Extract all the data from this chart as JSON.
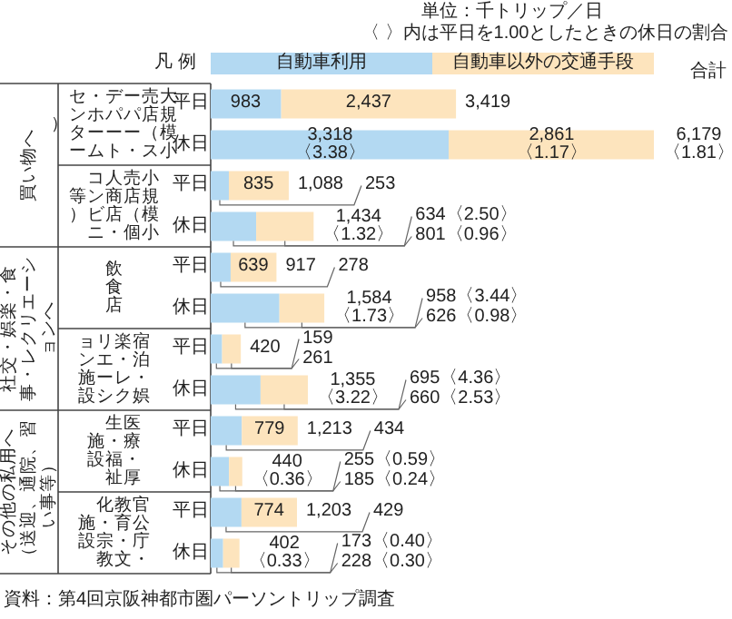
{
  "chart_data": {
    "type": "bar",
    "orientation": "horizontal",
    "stacked": true,
    "legend": "top",
    "legend_title": "凡 例",
    "categories": [
      "平日",
      "休日",
      "平日",
      "休日",
      "平日",
      "休日",
      "平日",
      "休日",
      "平日",
      "休日",
      "平日",
      "休日"
    ],
    "series": [
      {
        "name": "自動車利用",
        "color": "#b3d9f2",
        "values": [
          983,
          3318,
          253,
          634,
          278,
          958,
          159,
          695,
          434,
          255,
          429,
          173
        ],
        "value_labels": [
          "983",
          "3,318〈3.38〉",
          "253",
          "634〈2.50〉",
          "278",
          "958〈3.44〉",
          "159",
          "695〈4.36〉",
          "434",
          "255〈0.59〉",
          "429",
          "173〈0.40〉"
        ]
      },
      {
        "name": "自動車以外の交通手段",
        "color": "#fde4bd",
        "values": [
          2437,
          2861,
          835,
          801,
          639,
          626,
          261,
          660,
          779,
          185,
          774,
          228
        ],
        "value_labels": [
          "2,437",
          "2,861〈1.17〉",
          "835",
          "801〈0.96〉",
          "639",
          "626〈0.98〉",
          "261",
          "660〈2.53〉",
          "779",
          "185〈0.24〉",
          "774",
          "228〈0.30〉"
        ]
      }
    ],
    "totals": [
      "3,419",
      "6,179〈1.81〉",
      "1,088",
      "1,434〈1.32〉",
      "917",
      "1,584〈1.73〉",
      "420",
      "1,355〈3.22〉",
      "1,213",
      "440〈0.36〉",
      "1,203",
      "402〈0.33〉"
    ],
    "annotations": [
      "単位：千トリップ／日",
      "〈 〉内は平日を1.00としたときの休日の割合",
      "合計",
      "買い物へ",
      "社交・娯楽・食事・レクリエーションへ",
      "その他の私用へ（送迎、通院、習い事等）",
      "大規模小売店（スーパー・デパート・ホームセンター）",
      "小規模小売店（個人商店・コンビニ等）",
      "飲食店",
      "宿泊・娯楽・レクリエーション施設",
      "医療・厚生・福祉施設",
      "官公庁・教育・文化・宗教施設",
      "資料：第4回京阪神都市圏パーソントリップ調査"
    ]
  }
}
